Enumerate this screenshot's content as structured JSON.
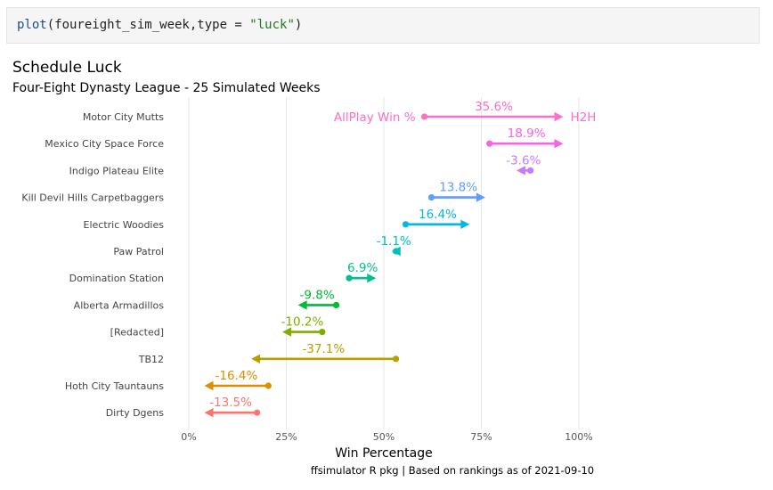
{
  "code": {
    "fn": "plot",
    "arg_open": "(foureight_sim_week,type = ",
    "string": "\"luck\"",
    "close": ")"
  },
  "chart_data": {
    "type": "dumbbell",
    "title": "Schedule Luck",
    "subtitle": "Four-Eight Dynasty League - 25 Simulated Weeks",
    "xlabel": "Win Percentage",
    "caption": "ffsimulator R pkg | Based on rankings as of 2021-09-10",
    "xlim": [
      0,
      1
    ],
    "x_ticks": [
      {
        "value": 0,
        "label": "0%"
      },
      {
        "value": 0.25,
        "label": "25%"
      },
      {
        "value": 0.5,
        "label": "50%"
      },
      {
        "value": 0.75,
        "label": "75%"
      },
      {
        "value": 1.0,
        "label": "100%"
      }
    ],
    "grid": "vertical-major",
    "annotations": {
      "allplay_label": "AllPlay Win %",
      "h2h_label": "H2H"
    },
    "teams": [
      {
        "name": "Motor City Mutts",
        "allplay": 0.604,
        "h2h": 0.96,
        "diff_label": "35.6%",
        "color": "#ff6ec7"
      },
      {
        "name": "Mexico City Space Force",
        "allplay": 0.771,
        "h2h": 0.96,
        "diff_label": "18.9%",
        "color": "#f564e3"
      },
      {
        "name": "Indigo Plateau Elite",
        "allplay": 0.876,
        "h2h": 0.84,
        "diff_label": "-3.6%",
        "color": "#c77cff"
      },
      {
        "name": "Kill Devil Hills Carpetbaggers",
        "allplay": 0.622,
        "h2h": 0.76,
        "diff_label": "13.8%",
        "color": "#619cff"
      },
      {
        "name": "Electric Woodies",
        "allplay": 0.556,
        "h2h": 0.72,
        "diff_label": "16.4%",
        "color": "#00b8e7"
      },
      {
        "name": "Paw Patrol",
        "allplay": 0.531,
        "h2h": 0.52,
        "diff_label": "-1.1%",
        "color": "#00bfc4"
      },
      {
        "name": "Domination Station",
        "allplay": 0.411,
        "h2h": 0.48,
        "diff_label": "6.9%",
        "color": "#00c08b"
      },
      {
        "name": "Alberta Armadillos",
        "allplay": 0.378,
        "h2h": 0.28,
        "diff_label": "-9.8%",
        "color": "#00ba38"
      },
      {
        "name": "[Redacted]",
        "allplay": 0.342,
        "h2h": 0.24,
        "diff_label": "-10.2%",
        "color": "#7cae00"
      },
      {
        "name": "TB12",
        "allplay": 0.531,
        "h2h": 0.16,
        "diff_label": "-37.1%",
        "color": "#b79f00"
      },
      {
        "name": "Hoth City Tauntauns",
        "allplay": 0.204,
        "h2h": 0.04,
        "diff_label": "-16.4%",
        "color": "#de8c00"
      },
      {
        "name": "Dirty Dgens",
        "allplay": 0.175,
        "h2h": 0.04,
        "diff_label": "-13.5%",
        "color": "#f8766d"
      }
    ]
  }
}
